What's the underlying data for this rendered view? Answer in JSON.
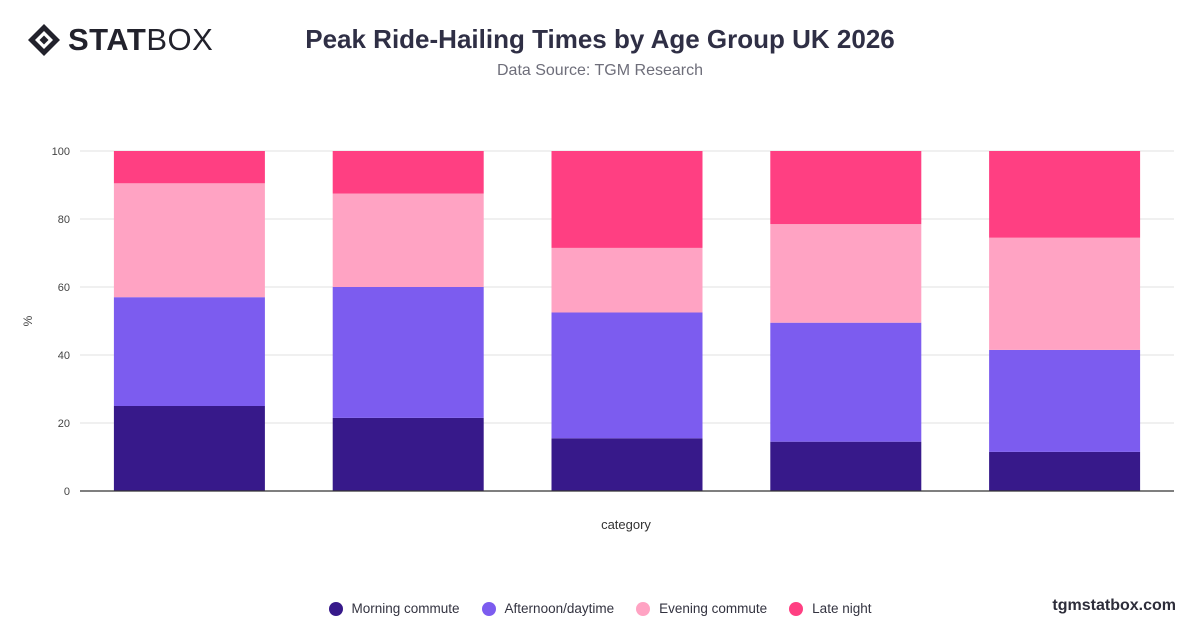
{
  "brand": {
    "logo_bold": "STAT",
    "logo_light": "BOX",
    "watermark": "tgmstatbox.com"
  },
  "colors": {
    "morning": "#37198a",
    "afternoon": "#7c5cef",
    "evening": "#ffa3c3",
    "late": "#ff3f82",
    "grid": "#e0e0e0",
    "axis": "#333333"
  },
  "chart_data": {
    "type": "bar",
    "stacked": true,
    "title": "Peak Ride-Hailing Times by Age Group UK 2026",
    "subtitle": "Data Source: TGM Research",
    "xlabel": "category",
    "ylabel": "%",
    "ylim": [
      0,
      100
    ],
    "yticks": [
      0,
      20,
      40,
      60,
      80,
      100
    ],
    "grid": true,
    "legend_position": "bottom",
    "categories": [
      "",
      "",
      "",
      "",
      ""
    ],
    "series": [
      {
        "name": "Morning commute",
        "color": "#37198a",
        "values": [
          25,
          21.5,
          15.5,
          14.5,
          11.5
        ]
      },
      {
        "name": "Afternoon/daytime",
        "color": "#7c5cef",
        "values": [
          32,
          38.5,
          37,
          35,
          30
        ]
      },
      {
        "name": "Evening commute",
        "color": "#ffa3c3",
        "values": [
          33.5,
          27.5,
          19,
          29,
          33
        ]
      },
      {
        "name": "Late night",
        "color": "#ff3f82",
        "values": [
          9.5,
          12.5,
          28.5,
          21.5,
          25.5
        ]
      }
    ]
  }
}
